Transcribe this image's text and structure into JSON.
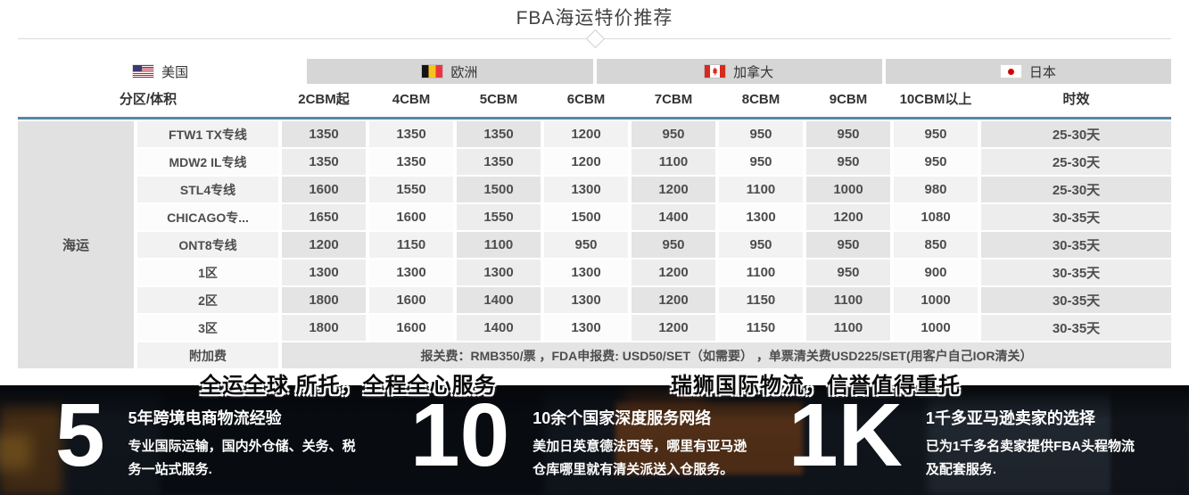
{
  "page": {
    "title": "FBA海运特价推荐"
  },
  "tabs": [
    {
      "key": "usa",
      "label": "美国",
      "flag": "us",
      "active": true
    },
    {
      "key": "europe",
      "label": "欧洲",
      "flag": "be",
      "active": false
    },
    {
      "key": "canada",
      "label": "加拿大",
      "flag": "ca",
      "active": false
    },
    {
      "key": "japan",
      "label": "日本",
      "flag": "jp",
      "active": false
    }
  ],
  "table": {
    "corner_header": "分区/体积",
    "group_label": "海运",
    "columns": [
      "2CBM起",
      "4CBM",
      "5CBM",
      "6CBM",
      "7CBM",
      "8CBM",
      "9CBM",
      "10CBM以上",
      "时效"
    ],
    "rows": [
      {
        "name": "FTW1 TX专线",
        "values": [
          "1350",
          "1350",
          "1350",
          "1200",
          "950",
          "950",
          "950",
          "950",
          "25-30天"
        ]
      },
      {
        "name": "MDW2 IL专线",
        "values": [
          "1350",
          "1350",
          "1350",
          "1200",
          "1100",
          "950",
          "950",
          "950",
          "25-30天"
        ]
      },
      {
        "name": "STL4专线",
        "values": [
          "1600",
          "1550",
          "1500",
          "1300",
          "1200",
          "1100",
          "1000",
          "980",
          "25-30天"
        ]
      },
      {
        "name": "CHICAGO专...",
        "values": [
          "1650",
          "1600",
          "1550",
          "1500",
          "1400",
          "1300",
          "1200",
          "1080",
          "30-35天"
        ]
      },
      {
        "name": "ONT8专线",
        "values": [
          "1200",
          "1150",
          "1100",
          "950",
          "950",
          "950",
          "950",
          "850",
          "30-35天"
        ]
      },
      {
        "name": "1区",
        "values": [
          "1300",
          "1300",
          "1300",
          "1300",
          "1200",
          "1100",
          "950",
          "900",
          "30-35天"
        ]
      },
      {
        "name": "2区",
        "values": [
          "1800",
          "1600",
          "1400",
          "1300",
          "1200",
          "1150",
          "1100",
          "1000",
          "30-35天"
        ]
      },
      {
        "name": "3区",
        "values": [
          "1800",
          "1600",
          "1400",
          "1300",
          "1200",
          "1150",
          "1100",
          "1000",
          "30-35天"
        ]
      }
    ],
    "surcharge": {
      "name": "附加费",
      "text": "报关费：RMB350/票 ，FDA申报费: USD50/SET（如需要） ，单票清关费USD225/SET(用客户自己IOR清关）"
    }
  },
  "slogans": {
    "left": "全运全球 所托，全程全心服务",
    "right": "瑞狮国际物流，信誉值得重托"
  },
  "stats": [
    {
      "number": "5",
      "title": "5年跨境电商物流经验",
      "body": "专业国际运输，国内外仓储、关务、税务一站式服务."
    },
    {
      "number": "10",
      "title": "10余个国家深度服务网络",
      "body": "美加日英意德法西等，哪里有亚马逊仓库哪里就有清关派送入仓服务。"
    },
    {
      "number": "1K",
      "title": "1千多亚马逊卖家的选择",
      "body": "已为1千多名卖家提供FBA头程物流及配套服务."
    }
  ],
  "colors": {
    "accent_line": "#5589a4",
    "tab_inactive_bg": "#d6d6d6",
    "group_cell_bg": "#e1e1e1",
    "hero_background": "#151b24",
    "flag_red": "#d52b1e"
  }
}
